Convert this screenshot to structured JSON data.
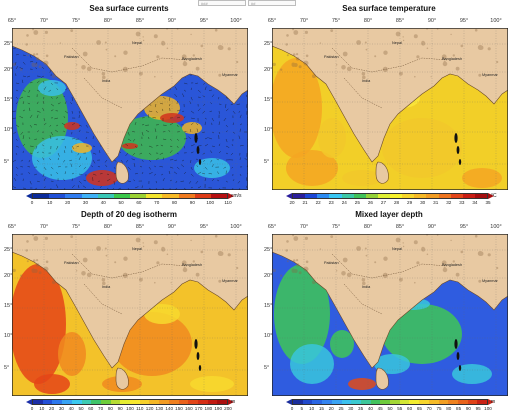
{
  "top_toolbar": {
    "field1": "###",
    "field2": "##"
  },
  "panels": [
    {
      "id": "currents",
      "title": "Sea surface currents",
      "lon_labels": [
        "65°",
        "70°",
        "75°",
        "80°",
        "85°",
        "90°",
        "95°",
        "100°"
      ],
      "lat_labels": [
        "25°",
        "20°",
        "15°",
        "10°",
        "5°"
      ],
      "colorbar": {
        "ticks": [
          "0",
          "10",
          "20",
          "30",
          "40",
          "50",
          "60",
          "70",
          "80",
          "90",
          "100",
          "110"
        ],
        "unit": "cm/s",
        "colors": [
          "#0a2a9a",
          "#1f4fd6",
          "#2f7cf0",
          "#3fb2f7",
          "#39c8b6",
          "#3ac84a",
          "#9bd233",
          "#f3e52d",
          "#f7ba25",
          "#f07a1e",
          "#dd3a16",
          "#b50e10"
        ]
      },
      "ocean_color": "#2a56d8",
      "accent_colors": [
        "#3fb84a",
        "#f0b428",
        "#d2321c",
        "#38c0e6"
      ],
      "place_labels": [
        "Pakistan",
        "Nepal",
        "Bangladesh",
        "Myanmar",
        "India"
      ]
    },
    {
      "id": "sst",
      "title": "Sea surface temperature",
      "lon_labels": [
        "65°",
        "70°",
        "75°",
        "80°",
        "85°",
        "90°",
        "95°",
        "100°"
      ],
      "lat_labels": [
        "25°",
        "20°",
        "15°",
        "10°",
        "5°"
      ],
      "colorbar": {
        "ticks": [
          "20",
          "21",
          "22",
          "23",
          "24",
          "25",
          "26",
          "27",
          "28",
          "29",
          "30",
          "31",
          "32",
          "33",
          "34",
          "35"
        ],
        "unit": "°C",
        "colors": [
          "#2a1e9c",
          "#1a46d6",
          "#2b8bf2",
          "#38c6f4",
          "#3cc8a6",
          "#40c25a",
          "#93d138",
          "#dff035",
          "#f7f22d",
          "#f6d52b",
          "#f5b826",
          "#f29c22",
          "#ee741f",
          "#e2451a",
          "#c81d14",
          "#a40c0e"
        ]
      },
      "ocean_color": "#f2cf28",
      "accent_colors": [
        "#f4a622",
        "#f2c82a",
        "#fbe83a"
      ],
      "place_labels": [
        "Pakistan",
        "Nepal",
        "Bangladesh",
        "Myanmar",
        "India"
      ]
    },
    {
      "id": "d20",
      "title": "Depth of 20 deg isotherm",
      "lon_labels": [
        "65°",
        "70°",
        "75°",
        "80°",
        "85°",
        "90°",
        "95°",
        "100°"
      ],
      "lat_labels": [
        "25°",
        "20°",
        "15°",
        "10°",
        "5°"
      ],
      "colorbar": {
        "ticks": [
          "0",
          "10",
          "20",
          "30",
          "40",
          "50",
          "60",
          "70",
          "80",
          "90",
          "100",
          "110",
          "120",
          "130",
          "140",
          "150",
          "160",
          "170",
          "180",
          "190",
          "200"
        ],
        "unit": "m",
        "colors": [
          "#1b2ea8",
          "#2350d8",
          "#2d78ee",
          "#38a3f4",
          "#3ccaf0",
          "#3dcbb2",
          "#3fc46a",
          "#6dcd3a",
          "#b6dc33",
          "#e6ee32",
          "#f8e82e",
          "#f7d12b",
          "#f5b827",
          "#f39c23",
          "#f0801f",
          "#ea621c",
          "#e24518",
          "#d52e15",
          "#c21b12",
          "#aa0f0f"
        ]
      },
      "ocean_color": "#f3c22a",
      "accent_colors": [
        "#e44417",
        "#f08a20",
        "#f7d92e"
      ],
      "place_labels": [
        "Pakistan",
        "Nepal",
        "Bangladesh",
        "Myanmar",
        "India"
      ]
    },
    {
      "id": "mld",
      "title": "Mixed layer depth",
      "lon_labels": [
        "65°",
        "70°",
        "75°",
        "80°",
        "85°",
        "90°",
        "95°",
        "100°"
      ],
      "lat_labels": [
        "25°",
        "20°",
        "15°",
        "10°",
        "5°"
      ],
      "colorbar": {
        "ticks": [
          "0",
          "5",
          "10",
          "15",
          "20",
          "25",
          "30",
          "35",
          "40",
          "45",
          "50",
          "55",
          "60",
          "65",
          "70",
          "75",
          "80",
          "85",
          "90",
          "95",
          "100"
        ],
        "unit": "m",
        "colors": [
          "#1a2d9c",
          "#2149cc",
          "#2a66e4",
          "#3484f0",
          "#3aa4f4",
          "#3cc1ee",
          "#3bcad0",
          "#3dc79a",
          "#42c35e",
          "#6ecb3c",
          "#a4d836",
          "#d3e734",
          "#f3ed30",
          "#f7d62c",
          "#f5bb27",
          "#f29f23",
          "#ef821f",
          "#e8631b",
          "#df4318",
          "#c92215"
        ]
      },
      "ocean_color": "#2f5ce0",
      "accent_colors": [
        "#3ec556",
        "#38c6dc",
        "#e04a17"
      ],
      "place_labels": [
        "Pakistan",
        "Nepal",
        "Bangladesh",
        "Myanmar",
        "India"
      ]
    }
  ]
}
